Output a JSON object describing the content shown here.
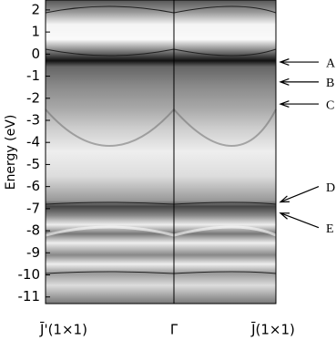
{
  "chart_data": {
    "type": "bandstructure",
    "y_label": "Energy (eV)",
    "categories": [
      "J̄'(1×1)",
      "Γ̄",
      "J̄(1×1)"
    ],
    "ylim": [
      -11.3,
      2.45
    ],
    "yticks": [
      2,
      1,
      0,
      -1,
      -2,
      -3,
      -4,
      -5,
      -6,
      -7,
      -8,
      -9,
      -10,
      -11
    ],
    "annotations": [
      {
        "label": "A",
        "value": -0.36
      },
      {
        "label": "B",
        "value": -1.26
      },
      {
        "label": "C",
        "value": -2.26
      },
      {
        "label": "D",
        "value": -6.7
      },
      {
        "label": "E",
        "value": -7.2
      }
    ]
  }
}
